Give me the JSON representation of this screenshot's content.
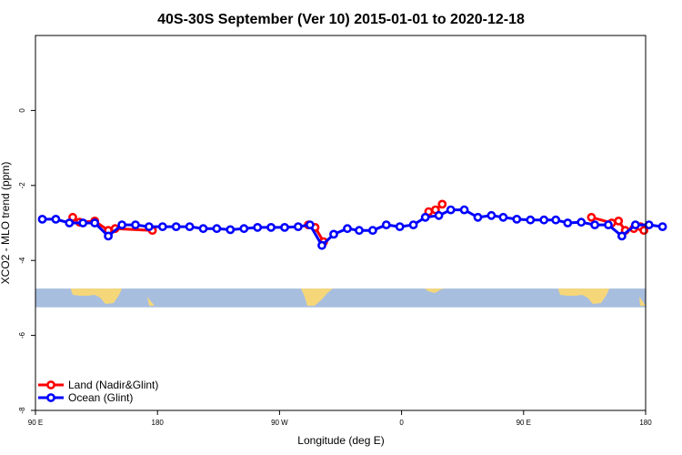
{
  "chart_data": {
    "type": "line",
    "title": "40S-30S September (Ver 10)   2015-01-01 to 2020-12-18",
    "xlabel": "Longitude (deg E)",
    "ylabel": "XCO2 - MLO trend (ppm)",
    "xlim": [
      90,
      450
    ],
    "ylim": [
      -8,
      2
    ],
    "x_ticks": [
      {
        "value": 90,
        "label": "90 E"
      },
      {
        "value": 162,
        "label": "180"
      },
      {
        "value": 234,
        "label": "90 W"
      },
      {
        "value": 306,
        "label": "0"
      },
      {
        "value": 378,
        "label": "90 E"
      },
      {
        "value": 450,
        "label": "180"
      }
    ],
    "y_ticks": [
      {
        "value": 0,
        "label": "0"
      },
      {
        "value": -2,
        "label": "-2"
      },
      {
        "value": -4,
        "label": "-4"
      },
      {
        "value": -6,
        "label": "-6"
      },
      {
        "value": -8,
        "label": "-8"
      }
    ],
    "grid": false,
    "legend_position": "bottom-left",
    "map_band": {
      "ymin": -5.25,
      "ymax": -4.75,
      "ocean_color": "#a8bede",
      "land_color": "#f5d77a"
    },
    "series": [
      {
        "name": "Land (Nadir&Glint)",
        "color": "#ff0000",
        "segments": [
          [
            [
              112,
              -2.85
            ],
            [
              116,
              -2.98
            ],
            [
              125,
              -2.95
            ],
            [
              133,
              -3.2
            ],
            [
              137,
              -3.15
            ],
            [
              159,
              -3.2
            ]
          ],
          [
            [
              251,
              -3.05
            ],
            [
              255,
              -3.12
            ],
            [
              260,
              -3.5
            ]
          ],
          [
            [
              322,
              -2.7
            ],
            [
              326,
              -2.65
            ],
            [
              330,
              -2.5
            ]
          ],
          [
            [
              418,
              -2.85
            ],
            [
              430,
              -3.0
            ],
            [
              434,
              -2.95
            ],
            [
              438,
              -3.2
            ],
            [
              443,
              -3.15
            ]
          ],
          [
            [
              447,
              -3.1
            ],
            [
              449,
              -3.2
            ]
          ]
        ]
      },
      {
        "name": "Ocean (Glint)",
        "color": "#0000ff",
        "segments": [
          [
            [
              94,
              -2.9
            ],
            [
              102,
              -2.9
            ],
            [
              110,
              -3.0
            ],
            [
              118,
              -3.0
            ],
            [
              125,
              -3.0
            ],
            [
              133,
              -3.35
            ],
            [
              141,
              -3.05
            ],
            [
              149,
              -3.05
            ],
            [
              157,
              -3.1
            ],
            [
              165,
              -3.1
            ],
            [
              173,
              -3.1
            ],
            [
              181,
              -3.1
            ],
            [
              189,
              -3.15
            ],
            [
              197,
              -3.15
            ],
            [
              205,
              -3.18
            ],
            [
              213,
              -3.15
            ],
            [
              221,
              -3.12
            ],
            [
              229,
              -3.12
            ],
            [
              237,
              -3.12
            ],
            [
              245,
              -3.1
            ],
            [
              252,
              -3.05
            ],
            [
              259,
              -3.6
            ],
            [
              266,
              -3.3
            ],
            [
              274,
              -3.15
            ],
            [
              281,
              -3.2
            ],
            [
              289,
              -3.2
            ],
            [
              297,
              -3.05
            ],
            [
              305,
              -3.1
            ],
            [
              313,
              -3.05
            ],
            [
              320,
              -2.85
            ],
            [
              328,
              -2.8
            ],
            [
              335,
              -2.65
            ],
            [
              343,
              -2.65
            ],
            [
              351,
              -2.85
            ],
            [
              359,
              -2.8
            ],
            [
              366,
              -2.85
            ],
            [
              374,
              -2.9
            ],
            [
              382,
              -2.92
            ],
            [
              390,
              -2.92
            ],
            [
              397,
              -2.92
            ],
            [
              404,
              -3.0
            ],
            [
              412,
              -2.98
            ],
            [
              420,
              -3.05
            ],
            [
              428,
              -3.05
            ],
            [
              436,
              -3.35
            ],
            [
              444,
              -3.05
            ],
            [
              452,
              -3.05
            ],
            [
              460,
              -3.1
            ]
          ]
        ]
      }
    ]
  }
}
